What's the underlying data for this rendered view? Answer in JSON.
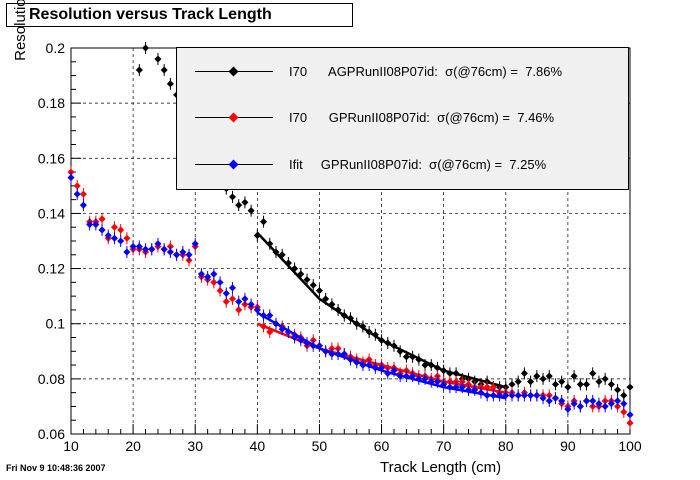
{
  "title": "Resolution versus Track Length",
  "timestamp": "Fri Nov  9 10:48:36 2007",
  "chart_data": {
    "type": "scatter",
    "xlabel": "Track Length (cm)",
    "ylabel": "Resolution",
    "xlim": [
      10,
      100
    ],
    "ylim": [
      0.06,
      0.2
    ],
    "xticks": [
      10,
      20,
      30,
      40,
      50,
      60,
      70,
      80,
      90,
      100
    ],
    "yticks": [
      0.06,
      0.08,
      0.1,
      0.12,
      0.14,
      0.16,
      0.18,
      0.2
    ],
    "xtick_labels": [
      "10",
      "20",
      "30",
      "40",
      "50",
      "60",
      "70",
      "80",
      "90",
      "100"
    ],
    "ytick_labels": [
      "0.06",
      "0.08",
      "0.1",
      "0.12",
      "0.14",
      "0.16",
      "0.18",
      "0.2"
    ],
    "grid": true,
    "legend_position": "top-right",
    "series": [
      {
        "name": "I70 AGPRunII08P07id: σ(@76cm) = 7.86%",
        "color": "#000000",
        "x": [
          21,
          22,
          24,
          25,
          26,
          27,
          28,
          29,
          30,
          31,
          32,
          33,
          34,
          35,
          36,
          37,
          38,
          39,
          40,
          41,
          42,
          43,
          44,
          45,
          46,
          47,
          48,
          49,
          50,
          51,
          52,
          53,
          54,
          55,
          56,
          57,
          58,
          59,
          60,
          61,
          62,
          63,
          64,
          65,
          66,
          67,
          68,
          69,
          70,
          71,
          72,
          73,
          74,
          75,
          76,
          77,
          78,
          79,
          80,
          81,
          82,
          83,
          84,
          85,
          86,
          87,
          88,
          89,
          90,
          91,
          92,
          93,
          94,
          95,
          96,
          97,
          98,
          99,
          100
        ],
        "y": [
          0.192,
          0.2,
          0.196,
          0.192,
          0.187,
          0.183,
          0.178,
          0.172,
          0.167,
          0.162,
          0.158,
          0.155,
          0.152,
          0.149,
          0.146,
          0.143,
          0.144,
          0.141,
          0.132,
          0.137,
          0.129,
          0.126,
          0.125,
          0.122,
          0.12,
          0.118,
          0.116,
          0.114,
          0.112,
          0.109,
          0.107,
          0.105,
          0.103,
          0.102,
          0.1,
          0.099,
          0.097,
          0.096,
          0.094,
          0.093,
          0.092,
          0.09,
          0.088,
          0.088,
          0.087,
          0.085,
          0.085,
          0.084,
          0.083,
          0.082,
          0.082,
          0.08,
          0.08,
          0.079,
          0.078,
          0.079,
          0.077,
          0.077,
          0.077,
          0.078,
          0.079,
          0.082,
          0.079,
          0.081,
          0.08,
          0.081,
          0.078,
          0.079,
          0.077,
          0.081,
          0.078,
          0.078,
          0.082,
          0.079,
          0.08,
          0.078,
          0.076,
          0.074,
          0.077
        ],
        "fit": {
          "x": [
            40,
            50,
            60,
            70,
            80
          ],
          "y": [
            0.133,
            0.109,
            0.094,
            0.083,
            0.077
          ]
        }
      },
      {
        "name": "I70 GPRunII08P07id: σ(@76cm) = 7.46%",
        "color": "#ff0000",
        "x": [
          10,
          11,
          12,
          13,
          14,
          15,
          16,
          17,
          18,
          19,
          20,
          21,
          22,
          23,
          24,
          25,
          26,
          27,
          28,
          29,
          30,
          31,
          32,
          33,
          34,
          35,
          36,
          37,
          38,
          39,
          40,
          41,
          42,
          43,
          44,
          45,
          46,
          47,
          48,
          49,
          50,
          51,
          52,
          53,
          54,
          55,
          56,
          57,
          58,
          59,
          60,
          61,
          62,
          63,
          64,
          65,
          66,
          67,
          68,
          69,
          70,
          71,
          72,
          73,
          74,
          75,
          76,
          77,
          78,
          79,
          80,
          81,
          82,
          83,
          84,
          85,
          86,
          87,
          88,
          89,
          90,
          91,
          92,
          93,
          94,
          95,
          96,
          97,
          98,
          99,
          100
        ],
        "y": [
          0.155,
          0.15,
          0.147,
          0.137,
          0.137,
          0.138,
          0.131,
          0.135,
          0.134,
          0.131,
          0.127,
          0.127,
          0.126,
          0.127,
          0.128,
          0.127,
          0.128,
          0.125,
          0.125,
          0.123,
          0.128,
          0.117,
          0.116,
          0.115,
          0.112,
          0.108,
          0.109,
          0.105,
          0.107,
          0.106,
          0.106,
          0.099,
          0.097,
          0.1,
          0.099,
          0.097,
          0.096,
          0.095,
          0.092,
          0.094,
          0.092,
          0.09,
          0.091,
          0.091,
          0.089,
          0.088,
          0.087,
          0.086,
          0.087,
          0.085,
          0.085,
          0.084,
          0.084,
          0.082,
          0.083,
          0.082,
          0.081,
          0.081,
          0.08,
          0.081,
          0.079,
          0.079,
          0.079,
          0.079,
          0.078,
          0.077,
          0.077,
          0.077,
          0.077,
          0.075,
          0.075,
          0.075,
          0.074,
          0.075,
          0.074,
          0.074,
          0.074,
          0.074,
          0.073,
          0.071,
          0.07,
          0.072,
          0.07,
          0.072,
          0.07,
          0.07,
          0.072,
          0.072,
          0.07,
          0.068,
          0.064
        ],
        "fit": {
          "x": [
            40,
            50,
            60,
            70,
            80
          ],
          "y": [
            0.1,
            0.091,
            0.085,
            0.079,
            0.075
          ]
        }
      },
      {
        "name": "Ifit GPRunII08P07id: σ(@76cm) = 7.25%",
        "color": "#0000ff",
        "x": [
          10,
          11,
          12,
          13,
          14,
          15,
          16,
          17,
          18,
          19,
          20,
          21,
          22,
          23,
          24,
          25,
          26,
          27,
          28,
          29,
          30,
          31,
          32,
          33,
          34,
          35,
          36,
          37,
          38,
          39,
          40,
          41,
          42,
          43,
          44,
          45,
          46,
          47,
          48,
          49,
          50,
          51,
          52,
          53,
          54,
          55,
          56,
          57,
          58,
          59,
          60,
          61,
          62,
          63,
          64,
          65,
          66,
          67,
          68,
          69,
          70,
          71,
          72,
          73,
          74,
          75,
          76,
          77,
          78,
          79,
          80,
          81,
          82,
          83,
          84,
          85,
          86,
          87,
          88,
          89,
          90,
          91,
          92,
          93,
          94,
          95,
          96,
          97,
          98,
          99,
          100
        ],
        "y": [
          0.153,
          0.147,
          0.143,
          0.136,
          0.136,
          0.134,
          0.132,
          0.131,
          0.13,
          0.126,
          0.128,
          0.128,
          0.127,
          0.127,
          0.129,
          0.127,
          0.126,
          0.125,
          0.126,
          0.125,
          0.129,
          0.118,
          0.117,
          0.118,
          0.115,
          0.111,
          0.113,
          0.108,
          0.109,
          0.107,
          0.105,
          0.103,
          0.103,
          0.1,
          0.098,
          0.097,
          0.095,
          0.094,
          0.093,
          0.092,
          0.092,
          0.09,
          0.089,
          0.089,
          0.089,
          0.087,
          0.086,
          0.085,
          0.085,
          0.084,
          0.084,
          0.082,
          0.083,
          0.081,
          0.081,
          0.081,
          0.08,
          0.08,
          0.079,
          0.079,
          0.078,
          0.077,
          0.077,
          0.077,
          0.076,
          0.076,
          0.075,
          0.074,
          0.074,
          0.074,
          0.074,
          0.074,
          0.074,
          0.074,
          0.074,
          0.074,
          0.073,
          0.072,
          0.073,
          0.072,
          0.069,
          0.071,
          0.07,
          0.072,
          0.072,
          0.071,
          0.07,
          0.071,
          0.072,
          0.071,
          0.067
        ],
        "fit": {
          "x": [
            40,
            50,
            60,
            70,
            80
          ],
          "y": [
            0.104,
            0.091,
            0.083,
            0.077,
            0.073
          ]
        }
      }
    ]
  },
  "legend": [
    {
      "label": "I70      AGPRunII08P07id:  σ(@76cm) =  7.86%",
      "color": "#000000"
    },
    {
      "label": "I70      GPRunII08P07id:  σ(@76cm) =  7.46%",
      "color": "#ff0000"
    },
    {
      "label": "Ifit     GPRunII08P07id:  σ(@76cm) =  7.25%",
      "color": "#0000ff"
    }
  ]
}
